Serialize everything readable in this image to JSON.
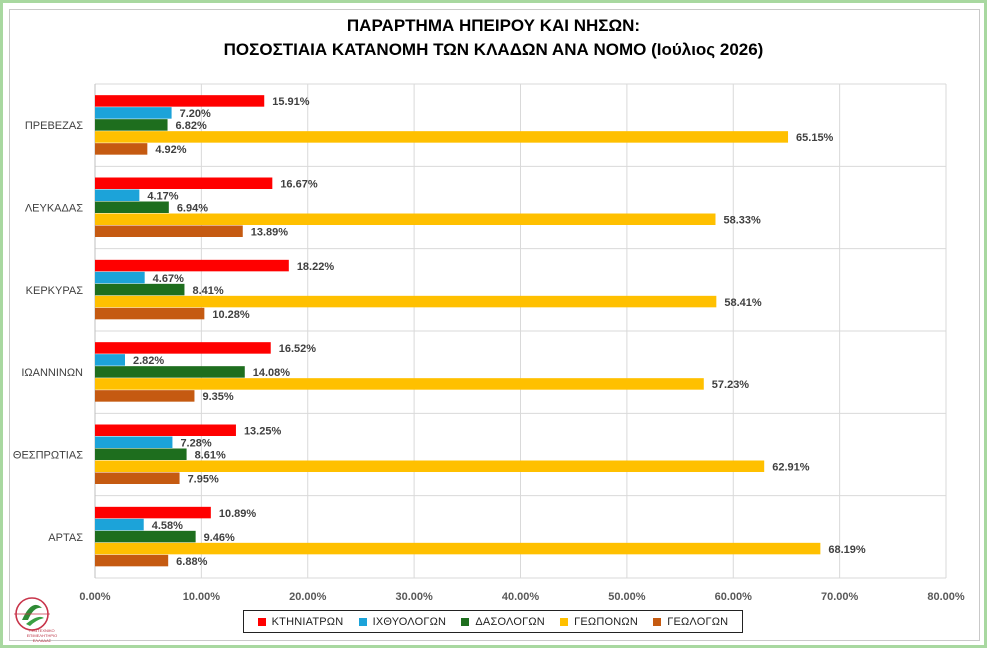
{
  "chart_data": {
    "type": "bar",
    "orientation": "horizontal",
    "title_line1": "ΠΑΡΑΡΤΗΜΑ ΗΠΕΙΡΟΥ ΚΑΙ ΝΗΣΩΝ:",
    "title_line2": "ΠΟΣΟΣΤΙΑΙΑ ΚΑΤΑΝΟΜΗ ΤΩΝ ΚΛΑΔΩΝ ΑΝΑ ΝΟΜΟ (Ιούλιος 2026)",
    "categories": [
      "ΠΡΕΒΕΖΑΣ",
      "ΛΕΥΚΑΔΑΣ",
      "ΚΕΡΚΥΡΑΣ",
      "ΙΩΑΝΝΙΝΩΝ",
      "ΘΕΣΠΡΩΤΙΑΣ",
      "ΑΡΤΑΣ"
    ],
    "series": [
      {
        "name": "ΚΤΗΝΙΑΤΡΩΝ",
        "color": "#ff0000",
        "values": [
          15.91,
          16.67,
          18.22,
          16.52,
          13.25,
          10.89
        ]
      },
      {
        "name": "ΙΧΘΥΟΛΟΓΩΝ",
        "color": "#1ca3d9",
        "values": [
          7.2,
          4.17,
          4.67,
          2.82,
          7.28,
          4.58
        ]
      },
      {
        "name": "ΔΑΣΟΛΟΓΩΝ",
        "color": "#1e6e1e",
        "values": [
          6.82,
          6.94,
          8.41,
          14.08,
          8.61,
          9.46
        ]
      },
      {
        "name": "ΓΕΩΠΟΝΩΝ",
        "color": "#ffc000",
        "values": [
          65.15,
          58.33,
          58.41,
          57.23,
          62.91,
          68.19
        ]
      },
      {
        "name": "ΓΕΩΛΟΓΩΝ",
        "color": "#c55a11",
        "values": [
          4.92,
          13.89,
          10.28,
          9.35,
          7.95,
          6.88
        ]
      }
    ],
    "xlim": [
      0,
      80
    ],
    "xticks": [
      0,
      10,
      20,
      30,
      40,
      50,
      60,
      70,
      80
    ],
    "xtick_labels": [
      "0.00%",
      "10.00%",
      "20.00%",
      "30.00%",
      "40.00%",
      "50.00%",
      "60.00%",
      "70.00%",
      "80.00%"
    ],
    "value_suffix": "%",
    "grid": true,
    "legend_position": "bottom"
  },
  "logo": {
    "text": "ΓΕΩΤΕΧΝΙΚΟ ΕΠΙΜΕΛΗΤΗΡΙΟ ΕΛΛΑΔΑΣ"
  }
}
